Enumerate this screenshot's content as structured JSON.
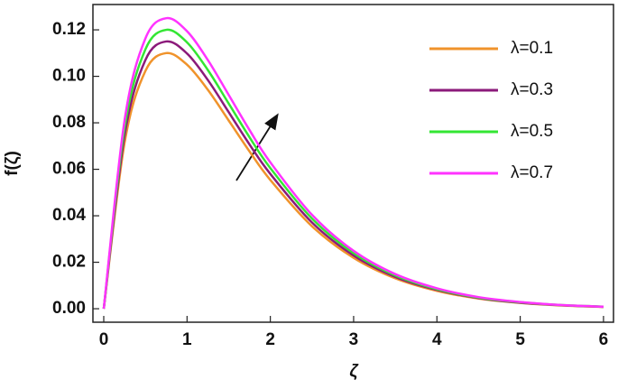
{
  "chart_data": {
    "type": "line",
    "x_label": "ζ",
    "y_label": "f(ζ)",
    "x": [
      0,
      0.25,
      0.5,
      0.75,
      1,
      1.25,
      1.5,
      1.75,
      2,
      2.5,
      3,
      3.5,
      4,
      4.5,
      5,
      5.5,
      6
    ],
    "series": [
      {
        "name": "λ=0.1",
        "color": "#f0932b",
        "values": [
          0,
          0.0714,
          0.1023,
          0.11,
          0.105,
          0.0942,
          0.081,
          0.0677,
          0.0554,
          0.0355,
          0.0219,
          0.0131,
          0.0077,
          0.0044,
          0.0025,
          0.0014,
          0.0008
        ]
      },
      {
        "name": "λ=0.3",
        "color": "#8b1a7a",
        "values": [
          0,
          0.0746,
          0.107,
          0.115,
          0.1098,
          0.0984,
          0.0846,
          0.0707,
          0.058,
          0.0371,
          0.0229,
          0.0137,
          0.0081,
          0.0046,
          0.0026,
          0.0015,
          0.0008
        ]
      },
      {
        "name": "λ=0.5",
        "color": "#33e633",
        "values": [
          0,
          0.0779,
          0.1116,
          0.12,
          0.1146,
          0.1027,
          0.0883,
          0.0738,
          0.0605,
          0.0388,
          0.0239,
          0.0143,
          0.0084,
          0.0048,
          0.0028,
          0.0016,
          0.0009
        ]
      },
      {
        "name": "λ=0.7",
        "color": "#ff33ff",
        "values": [
          0,
          0.0811,
          0.1163,
          0.125,
          0.1194,
          0.107,
          0.092,
          0.0769,
          0.063,
          0.0404,
          0.0249,
          0.0149,
          0.0088,
          0.005,
          0.0029,
          0.0016,
          0.0009
        ]
      }
    ],
    "xlim": [
      -0.13,
      6.12
    ],
    "ylim": [
      -0.0058,
      0.1309
    ],
    "xticks": [
      0,
      1,
      2,
      3,
      4,
      5,
      6
    ],
    "yticks": [
      {
        "value": 0,
        "label": "0.00"
      },
      {
        "value": 0.02,
        "label": "0.02"
      },
      {
        "value": 0.04,
        "label": "0.04"
      },
      {
        "value": 0.06,
        "label": "0.06"
      },
      {
        "value": 0.08,
        "label": "0.08"
      },
      {
        "value": 0.1,
        "label": "0.10"
      },
      {
        "value": 0.12,
        "label": "0.12"
      }
    ],
    "grid": false,
    "legend": "upper right"
  }
}
